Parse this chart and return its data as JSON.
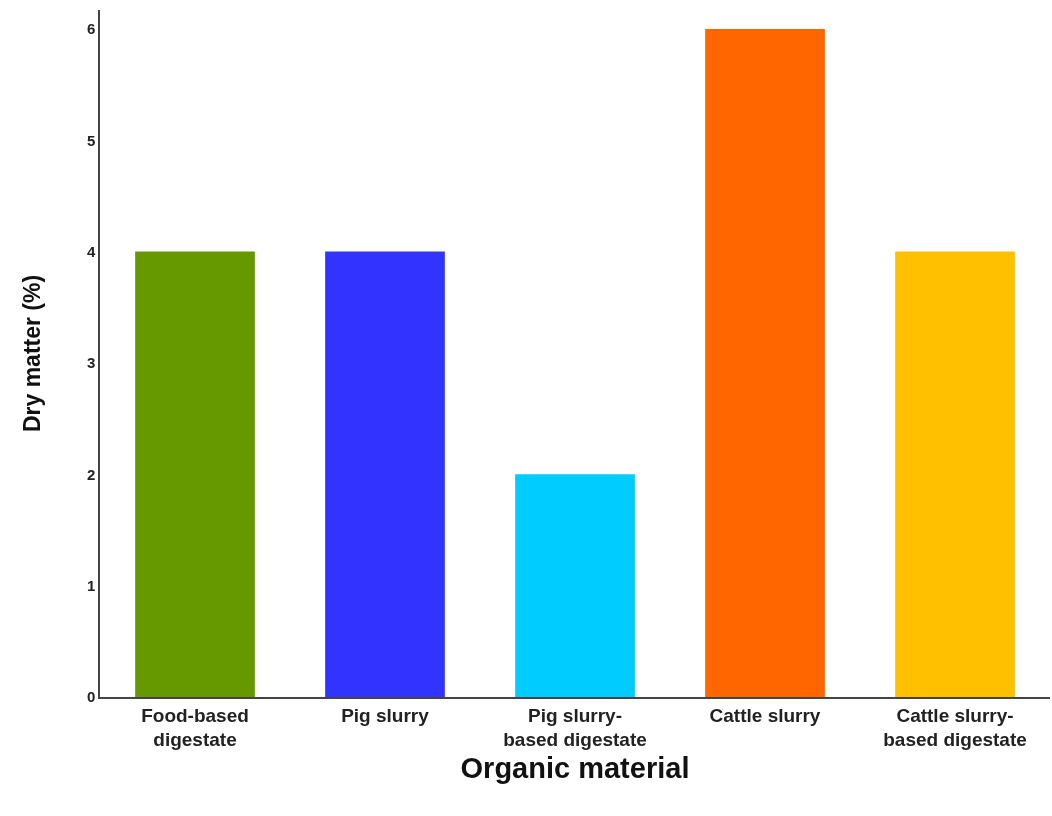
{
  "chart_data": {
    "type": "bar",
    "xlabel": "Organic material",
    "ylabel": "Dry matter (%)",
    "categories": [
      "Food-based digestate",
      "Pig slurry",
      "Pig slurry-based digestate",
      "Cattle slurry",
      "Cattle slurry-based digestate"
    ],
    "values": [
      4,
      4,
      2,
      6,
      4
    ],
    "colors": [
      "#669900",
      "#3333ff",
      "#00ccff",
      "#ff6600",
      "#ffc000"
    ],
    "ylim": [
      0,
      6.17
    ],
    "yticks": [
      0,
      1,
      2,
      3,
      4,
      5,
      6
    ],
    "grid": false
  }
}
